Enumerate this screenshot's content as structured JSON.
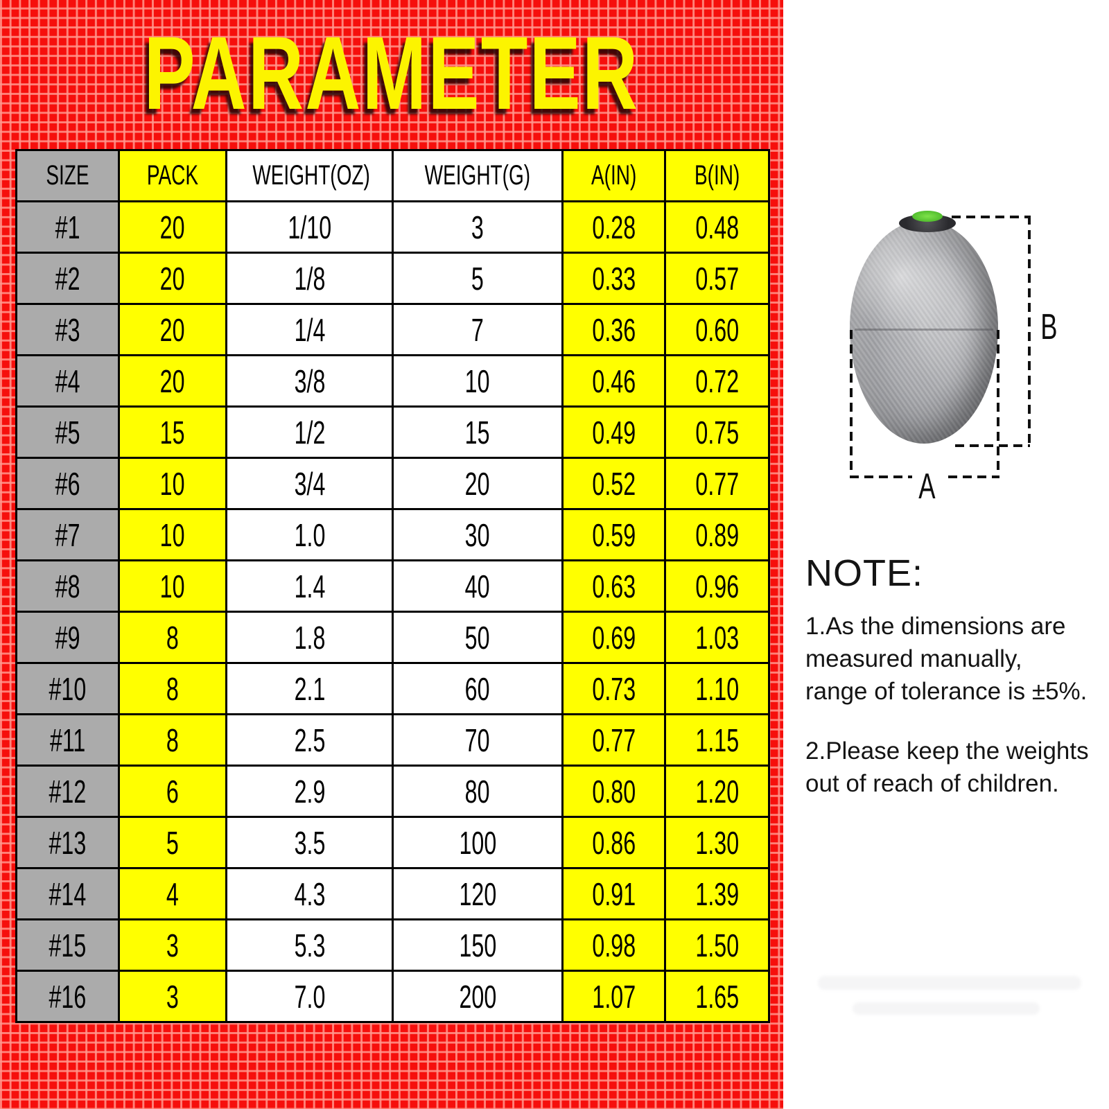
{
  "title": "PARAMETER",
  "table": {
    "columns": [
      "SIZE",
      "PACK",
      "WEIGHT(OZ)",
      "WEIGHT(G)",
      "A(IN)",
      "B(IN)"
    ],
    "rows": [
      {
        "size": "#1",
        "pack": "20",
        "weight_oz": "1/10",
        "weight_g": "3",
        "a_in": "0.28",
        "b_in": "0.48"
      },
      {
        "size": "#2",
        "pack": "20",
        "weight_oz": "1/8",
        "weight_g": "5",
        "a_in": "0.33",
        "b_in": "0.57"
      },
      {
        "size": "#3",
        "pack": "20",
        "weight_oz": "1/4",
        "weight_g": "7",
        "a_in": "0.36",
        "b_in": "0.60"
      },
      {
        "size": "#4",
        "pack": "20",
        "weight_oz": "3/8",
        "weight_g": "10",
        "a_in": "0.46",
        "b_in": "0.72"
      },
      {
        "size": "#5",
        "pack": "15",
        "weight_oz": "1/2",
        "weight_g": "15",
        "a_in": "0.49",
        "b_in": "0.75"
      },
      {
        "size": "#6",
        "pack": "10",
        "weight_oz": "3/4",
        "weight_g": "20",
        "a_in": "0.52",
        "b_in": "0.77"
      },
      {
        "size": "#7",
        "pack": "10",
        "weight_oz": "1.0",
        "weight_g": "30",
        "a_in": "0.59",
        "b_in": "0.89"
      },
      {
        "size": "#8",
        "pack": "10",
        "weight_oz": "1.4",
        "weight_g": "40",
        "a_in": "0.63",
        "b_in": "0.96"
      },
      {
        "size": "#9",
        "pack": "8",
        "weight_oz": "1.8",
        "weight_g": "50",
        "a_in": "0.69",
        "b_in": "1.03"
      },
      {
        "size": "#10",
        "pack": "8",
        "weight_oz": "2.1",
        "weight_g": "60",
        "a_in": "0.73",
        "b_in": "1.10"
      },
      {
        "size": "#11",
        "pack": "8",
        "weight_oz": "2.5",
        "weight_g": "70",
        "a_in": "0.77",
        "b_in": "1.15"
      },
      {
        "size": "#12",
        "pack": "6",
        "weight_oz": "2.9",
        "weight_g": "80",
        "a_in": "0.80",
        "b_in": "1.20"
      },
      {
        "size": "#13",
        "pack": "5",
        "weight_oz": "3.5",
        "weight_g": "100",
        "a_in": "0.86",
        "b_in": "1.30"
      },
      {
        "size": "#14",
        "pack": "4",
        "weight_oz": "4.3",
        "weight_g": "120",
        "a_in": "0.91",
        "b_in": "1.39"
      },
      {
        "size": "#15",
        "pack": "3",
        "weight_oz": "5.3",
        "weight_g": "150",
        "a_in": "0.98",
        "b_in": "1.50"
      },
      {
        "size": "#16",
        "pack": "3",
        "weight_oz": "7.0",
        "weight_g": "200",
        "a_in": "1.07",
        "b_in": "1.65"
      }
    ]
  },
  "diagram": {
    "dimension_a_label": "A",
    "dimension_b_label": "B"
  },
  "note": {
    "heading": "NOTE:",
    "item1": "1.As the dimensions are\nmeasured manually,\nrange of tolerance is ±5%.",
    "item2": "2.Please keep the weights\nout of reach of children."
  },
  "colors": {
    "background_red": "#F60F0C",
    "grid_line_pink": "#F8837C",
    "cell_yellow": "#FFFF00",
    "cell_gray": "#ABABAB",
    "title_yellow": "#FCF400",
    "sinker_green": "#5FCC3A"
  }
}
